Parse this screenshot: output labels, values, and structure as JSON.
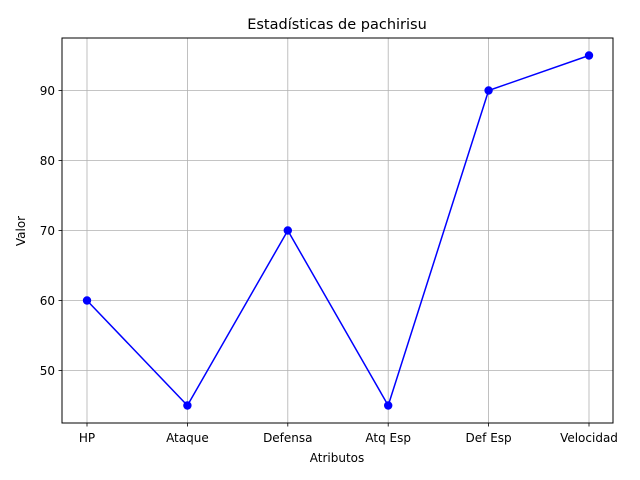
{
  "chart_data": {
    "type": "line",
    "title": "Estadísticas de pachirisu",
    "xlabel": "Atributos",
    "ylabel": "Valor",
    "categories": [
      "HP",
      "Ataque",
      "Defensa",
      "Atq Esp",
      "Def Esp",
      "Velocidad"
    ],
    "series": [
      {
        "values": [
          60,
          45,
          70,
          45,
          90,
          95
        ],
        "color": "#0000ff",
        "marker": "circle"
      }
    ],
    "yticks": [
      50,
      60,
      70,
      80,
      90
    ],
    "ylim": [
      42.5,
      97.5
    ],
    "grid": true
  }
}
